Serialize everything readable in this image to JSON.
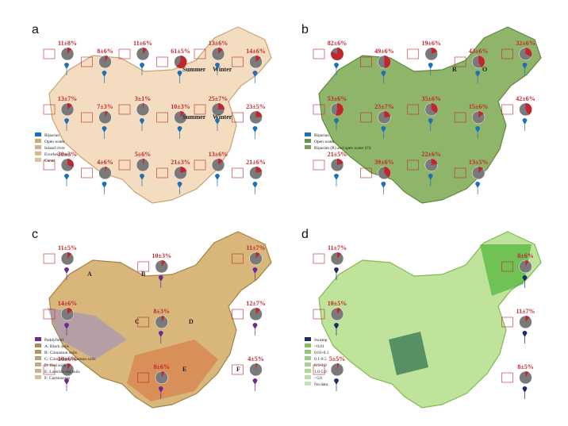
{
  "panels": [
    {
      "label": "a",
      "season_labels": [
        "Summer",
        "Winter",
        "Summer",
        "Winter"
      ],
      "legend": [
        "Riparian",
        "Open water",
        "Inland river",
        "Exorheic river",
        "Canal"
      ],
      "pies": [
        {
          "label": "11±8%",
          "value": 11
        },
        {
          "label": "8±6%",
          "value": 8
        },
        {
          "label": "11±6%",
          "value": 11
        },
        {
          "label": "61±5%",
          "value": 61
        },
        {
          "label": "13±6%",
          "value": 13
        },
        {
          "label": "14±6%",
          "value": 14
        },
        {
          "label": "13±7%",
          "value": 13
        },
        {
          "label": "7±3%",
          "value": 7
        },
        {
          "label": "3±1%",
          "value": 3
        },
        {
          "label": "10±3%",
          "value": 10
        },
        {
          "label": "25±7%",
          "value": 25
        },
        {
          "label": "23±5%",
          "value": 23
        },
        {
          "label": "30±3%",
          "value": 30
        },
        {
          "label": "4±6%",
          "value": 4
        },
        {
          "label": "5±6%",
          "value": 5
        },
        {
          "label": "21±3%",
          "value": 21
        },
        {
          "label": "13±6%",
          "value": 13
        },
        {
          "label": "21±6%",
          "value": 21
        }
      ]
    },
    {
      "label": "b",
      "season_labels": [
        "R",
        "O"
      ],
      "legend": [
        "Riparian",
        "Open water",
        "Riparian (R) and open water (O)"
      ],
      "pies": [
        {
          "label": "82±6%",
          "value": 82
        },
        {
          "label": "49±6%",
          "value": 49
        },
        {
          "label": "19±6%",
          "value": 19
        },
        {
          "label": "43±6%",
          "value": 43
        },
        {
          "label": "32±6%",
          "value": 32
        },
        {
          "label": "53±6%",
          "value": 53
        },
        {
          "label": "23±7%",
          "value": 23
        },
        {
          "label": "35±6%",
          "value": 35
        },
        {
          "label": "15±6%",
          "value": 15
        },
        {
          "label": "42±6%",
          "value": 42
        },
        {
          "label": "21±5%",
          "value": 21
        },
        {
          "label": "39±6%",
          "value": 39
        },
        {
          "label": "22±6%",
          "value": 22
        },
        {
          "label": "13±5%",
          "value": 13
        }
      ]
    },
    {
      "label": "c",
      "season_labels": [
        "A",
        "B",
        "C",
        "D",
        "E",
        "F"
      ],
      "legend": [
        "Paddyfield",
        "A: Black soils",
        "B: Cinnamon soils",
        "C: Cinnamon-cinnamon soils",
        "D: Red soils",
        "E: Lateritic red soils",
        "F: Carmosoms"
      ],
      "pies": [
        {
          "label": "11±5%",
          "value": 11
        },
        {
          "label": "10±3%",
          "value": 10
        },
        {
          "label": "11±7%",
          "value": 11
        },
        {
          "label": "14±6%",
          "value": 14
        },
        {
          "label": "8±3%",
          "value": 8
        },
        {
          "label": "12±7%",
          "value": 12
        },
        {
          "label": "10±6%",
          "value": 10
        },
        {
          "label": "8±6%",
          "value": 8
        },
        {
          "label": "4±5%",
          "value": 4
        }
      ]
    },
    {
      "label": "d",
      "season_labels": [],
      "legend": [
        "Swamp",
        "<0.01",
        "0.01-0.1",
        "0.1-0.5",
        "0.5-1.0",
        "1.0-5.0",
        ">5.0",
        "No data"
      ],
      "pies": [
        {
          "label": "11±7%",
          "value": 11
        },
        {
          "label": "8±6%",
          "value": 8
        },
        {
          "label": "10±5%",
          "value": 10
        },
        {
          "label": "11±7%",
          "value": 11
        },
        {
          "label": "5±5%",
          "value": 5
        },
        {
          "label": "8±5%",
          "value": 8
        }
      ]
    }
  ]
}
